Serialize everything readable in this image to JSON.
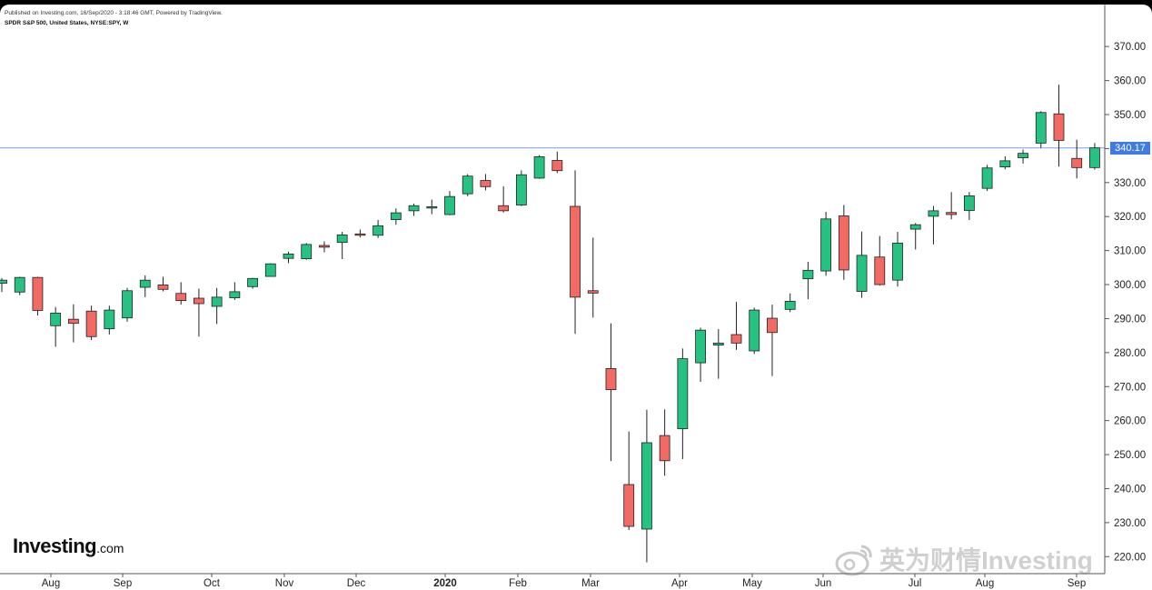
{
  "header": {
    "published": "Published on Investing.com, 16/Sep/2020 - 3:18:46 GMT, Powered by TradingView.",
    "symbol": "SPDR S&P 500, United States, NYSE:SPY, W"
  },
  "logo": {
    "text": "Investing",
    "suffix": ".com"
  },
  "watermark": {
    "text": "英为财情Investing"
  },
  "chart_data": {
    "type": "candlestick",
    "title": "SPDR S&P 500, United States, NYSE:SPY, W",
    "ylim": [
      215,
      377
    ],
    "y_ticks": [
      220,
      230,
      240,
      250,
      260,
      270,
      280,
      290,
      300,
      310,
      320,
      330,
      340,
      350,
      360,
      370
    ],
    "y_tick_labels": [
      "220.00",
      "230.00",
      "240.00",
      "250.00",
      "260.00",
      "270.00",
      "280.00",
      "290.00",
      "300.00",
      "310.00",
      "320.00",
      "330.00",
      "340.00",
      "350.00",
      "360.00",
      "370.00"
    ],
    "x_tick_labels": [
      "Aug",
      "Sep",
      "Oct",
      "Nov",
      "Dec",
      "2020",
      "Feb",
      "Mar",
      "Apr",
      "May",
      "Jun",
      "Jul",
      "Aug",
      "Sep"
    ],
    "last_price": 340.17,
    "last_price_label": "340.17",
    "colors": {
      "up": "#26c281",
      "down": "#f26a63",
      "outline": "#222222",
      "price_line": "#7b9fe6",
      "axis": "#555555"
    },
    "candles": [
      {
        "o": 300.4,
        "h": 301.9,
        "l": 297.8,
        "c": 301.3
      },
      {
        "o": 297.8,
        "h": 302.3,
        "l": 296.9,
        "c": 302.1
      },
      {
        "o": 302.1,
        "h": 302.3,
        "l": 290.9,
        "c": 292.4
      },
      {
        "o": 287.9,
        "h": 293.4,
        "l": 281.7,
        "c": 291.6
      },
      {
        "o": 289.8,
        "h": 294.2,
        "l": 283.0,
        "c": 288.6
      },
      {
        "o": 292.2,
        "h": 293.8,
        "l": 283.7,
        "c": 284.7
      },
      {
        "o": 287.0,
        "h": 293.8,
        "l": 285.3,
        "c": 292.5
      },
      {
        "o": 290.2,
        "h": 299.0,
        "l": 289.1,
        "c": 298.2
      },
      {
        "o": 299.2,
        "h": 302.7,
        "l": 296.3,
        "c": 301.3
      },
      {
        "o": 299.9,
        "h": 302.3,
        "l": 298.0,
        "c": 298.6
      },
      {
        "o": 297.4,
        "h": 300.7,
        "l": 294.1,
        "c": 295.3
      },
      {
        "o": 296.0,
        "h": 298.8,
        "l": 284.7,
        "c": 294.4
      },
      {
        "o": 293.6,
        "h": 299.0,
        "l": 288.4,
        "c": 296.3
      },
      {
        "o": 296.1,
        "h": 300.7,
        "l": 295.5,
        "c": 297.9
      },
      {
        "o": 299.4,
        "h": 302.0,
        "l": 298.8,
        "c": 301.8
      },
      {
        "o": 302.4,
        "h": 306.3,
        "l": 302.3,
        "c": 306.1
      },
      {
        "o": 307.7,
        "h": 309.7,
        "l": 306.3,
        "c": 309.0
      },
      {
        "o": 307.6,
        "h": 312.2,
        "l": 307.3,
        "c": 311.8
      },
      {
        "o": 311.5,
        "h": 312.7,
        "l": 309.5,
        "c": 311.0
      },
      {
        "o": 312.4,
        "h": 315.5,
        "l": 307.5,
        "c": 314.6
      },
      {
        "o": 314.9,
        "h": 316.2,
        "l": 313.9,
        "c": 314.8
      },
      {
        "o": 314.5,
        "h": 319.0,
        "l": 313.7,
        "c": 317.3
      },
      {
        "o": 319.1,
        "h": 322.4,
        "l": 317.6,
        "c": 321.1
      },
      {
        "o": 321.7,
        "h": 323.8,
        "l": 320.2,
        "c": 323.2
      },
      {
        "o": 322.8,
        "h": 325.0,
        "l": 320.7,
        "c": 322.9
      },
      {
        "o": 320.6,
        "h": 327.5,
        "l": 320.4,
        "c": 325.9
      },
      {
        "o": 326.7,
        "h": 332.5,
        "l": 326.0,
        "c": 331.9
      },
      {
        "o": 330.6,
        "h": 332.5,
        "l": 327.7,
        "c": 328.8
      },
      {
        "o": 323.2,
        "h": 328.9,
        "l": 321.2,
        "c": 321.7
      },
      {
        "o": 323.4,
        "h": 333.6,
        "l": 323.1,
        "c": 332.3
      },
      {
        "o": 331.3,
        "h": 338.1,
        "l": 331.1,
        "c": 337.6
      },
      {
        "o": 336.5,
        "h": 339.1,
        "l": 332.8,
        "c": 333.5
      },
      {
        "o": 323.0,
        "h": 333.6,
        "l": 285.5,
        "c": 296.3
      },
      {
        "o": 298.2,
        "h": 313.8,
        "l": 290.3,
        "c": 297.5
      },
      {
        "o": 275.3,
        "h": 288.6,
        "l": 248.1,
        "c": 269.1
      },
      {
        "o": 241.2,
        "h": 256.8,
        "l": 227.8,
        "c": 228.9
      },
      {
        "o": 228.1,
        "h": 263.2,
        "l": 218.3,
        "c": 253.5
      },
      {
        "o": 255.6,
        "h": 263.3,
        "l": 243.8,
        "c": 248.2
      },
      {
        "o": 257.6,
        "h": 281.2,
        "l": 248.7,
        "c": 278.2
      },
      {
        "o": 277.0,
        "h": 287.3,
        "l": 271.4,
        "c": 286.6
      },
      {
        "o": 282.2,
        "h": 286.9,
        "l": 272.3,
        "c": 282.8
      },
      {
        "o": 285.3,
        "h": 294.9,
        "l": 280.8,
        "c": 282.8
      },
      {
        "o": 280.5,
        "h": 293.2,
        "l": 279.6,
        "c": 292.5
      },
      {
        "o": 290.1,
        "h": 294.1,
        "l": 273.1,
        "c": 285.9
      },
      {
        "o": 292.7,
        "h": 297.4,
        "l": 291.9,
        "c": 295.1
      },
      {
        "o": 301.7,
        "h": 306.7,
        "l": 295.7,
        "c": 304.2
      },
      {
        "o": 304.0,
        "h": 321.4,
        "l": 302.6,
        "c": 319.3
      },
      {
        "o": 320.2,
        "h": 323.4,
        "l": 301.4,
        "c": 304.3
      },
      {
        "o": 298.0,
        "h": 315.6,
        "l": 296.1,
        "c": 308.6
      },
      {
        "o": 308.1,
        "h": 314.3,
        "l": 299.7,
        "c": 300.0
      },
      {
        "o": 301.3,
        "h": 315.5,
        "l": 299.4,
        "c": 312.2
      },
      {
        "o": 316.3,
        "h": 318.1,
        "l": 310.3,
        "c": 317.6
      },
      {
        "o": 320.1,
        "h": 323.1,
        "l": 311.8,
        "c": 321.7
      },
      {
        "o": 321.2,
        "h": 327.2,
        "l": 319.2,
        "c": 320.6
      },
      {
        "o": 321.8,
        "h": 327.2,
        "l": 319.0,
        "c": 326.1
      },
      {
        "o": 328.3,
        "h": 335.2,
        "l": 327.5,
        "c": 334.3
      },
      {
        "o": 334.6,
        "h": 337.7,
        "l": 333.9,
        "c": 336.4
      },
      {
        "o": 337.3,
        "h": 339.7,
        "l": 335.6,
        "c": 338.6
      },
      {
        "o": 341.6,
        "h": 351.0,
        "l": 340.2,
        "c": 350.6
      },
      {
        "o": 350.2,
        "h": 358.8,
        "l": 334.7,
        "c": 342.4
      },
      {
        "o": 337.1,
        "h": 342.6,
        "l": 331.2,
        "c": 334.4
      },
      {
        "o": 334.4,
        "h": 341.6,
        "l": 333.8,
        "c": 340.2
      }
    ]
  }
}
